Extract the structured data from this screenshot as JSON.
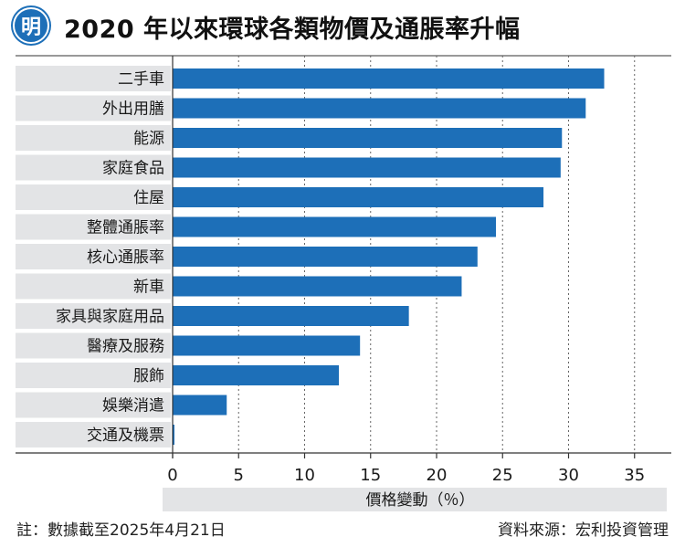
{
  "header": {
    "logo_text": "明",
    "title": "2020 年以來環球各類物價及通脹率升幅"
  },
  "footer": {
    "note": "註：數據截至2025年4月21日",
    "source": "資料來源：宏利投資管理"
  },
  "colors": {
    "bar": "#1d6fb8",
    "label_bg": "#e3e4e6",
    "xlabel_bg": "#e3e4e6",
    "logo": "#1d6fb8"
  },
  "icons": {
    "logo": "ming-pao-logo-icon"
  },
  "chart_data": {
    "type": "bar",
    "orientation": "horizontal",
    "title": "2020 年以來環球各類物價及通脹率升幅",
    "categories": [
      "二手車",
      "外出用膳",
      "能源",
      "家庭食品",
      "住屋",
      "整體通脹率",
      "核心通脹率",
      "新車",
      "家具與家庭用品",
      "醫療及服務",
      "服飾",
      "娛樂消遣",
      "交通及機票"
    ],
    "values": [
      32.7,
      31.3,
      29.5,
      29.4,
      28.1,
      24.5,
      23.1,
      21.9,
      17.9,
      14.2,
      12.6,
      4.1,
      0.1
    ],
    "xlabel": "價格變動（％）",
    "xlim": [
      0,
      37
    ],
    "xticks": [
      0,
      5,
      10,
      15,
      20,
      25,
      30,
      35
    ],
    "grid": "vertical-dotted",
    "legend": "none"
  }
}
